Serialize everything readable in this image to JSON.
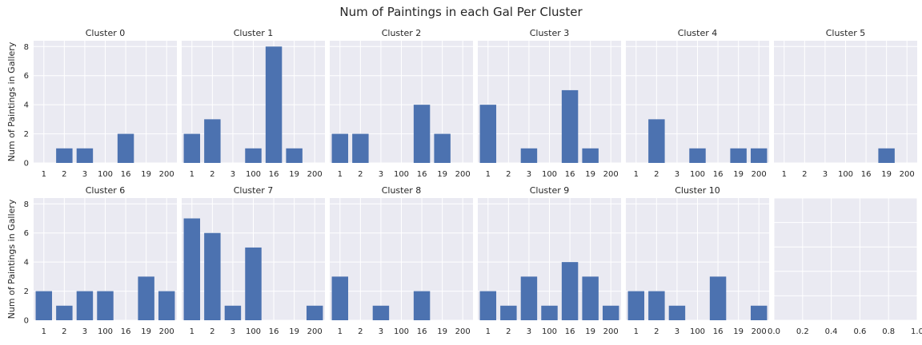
{
  "title": "Num of Paintings in each Gal Per Cluster",
  "chart_data": {
    "type": "bar",
    "title": "Num of Paintings in each Gal Per Cluster",
    "ylabel": "Num of Paintings in Gallery",
    "categories": [
      "1",
      "2",
      "3",
      "100",
      "16",
      "19",
      "200"
    ],
    "ylim": [
      0,
      8.4
    ],
    "yticks": [
      0,
      2,
      4,
      6,
      8
    ],
    "grid": true,
    "bar_color": "#4c72b0",
    "background_color": "#eaeaf2",
    "panels": [
      {
        "title": "Cluster 0",
        "values": [
          0,
          1,
          1,
          0,
          2,
          0,
          0
        ]
      },
      {
        "title": "Cluster 1",
        "values": [
          2,
          3,
          0,
          1,
          8,
          1,
          0
        ]
      },
      {
        "title": "Cluster 2",
        "values": [
          2,
          2,
          0,
          0,
          4,
          2,
          0
        ]
      },
      {
        "title": "Cluster 3",
        "values": [
          4,
          0,
          1,
          0,
          5,
          1,
          0
        ]
      },
      {
        "title": "Cluster 4",
        "values": [
          0,
          3,
          0,
          1,
          0,
          1,
          1
        ]
      },
      {
        "title": "Cluster 5",
        "values": [
          0,
          0,
          0,
          0,
          0,
          1,
          0
        ]
      },
      {
        "title": "Cluster 6",
        "values": [
          2,
          1,
          2,
          2,
          0,
          3,
          2
        ]
      },
      {
        "title": "Cluster 7",
        "values": [
          7,
          6,
          1,
          5,
          0,
          0,
          1
        ]
      },
      {
        "title": "Cluster 8",
        "values": [
          3,
          0,
          1,
          0,
          2,
          0,
          0
        ]
      },
      {
        "title": "Cluster 9",
        "values": [
          2,
          1,
          3,
          1,
          4,
          3,
          1
        ]
      },
      {
        "title": "Cluster 10",
        "values": [
          2,
          2,
          1,
          0,
          3,
          0,
          1
        ]
      }
    ],
    "empty_panel": {
      "xticks": [
        "0.0",
        "0.2",
        "0.4",
        "0.6",
        "0.8",
        "1.0"
      ]
    }
  }
}
